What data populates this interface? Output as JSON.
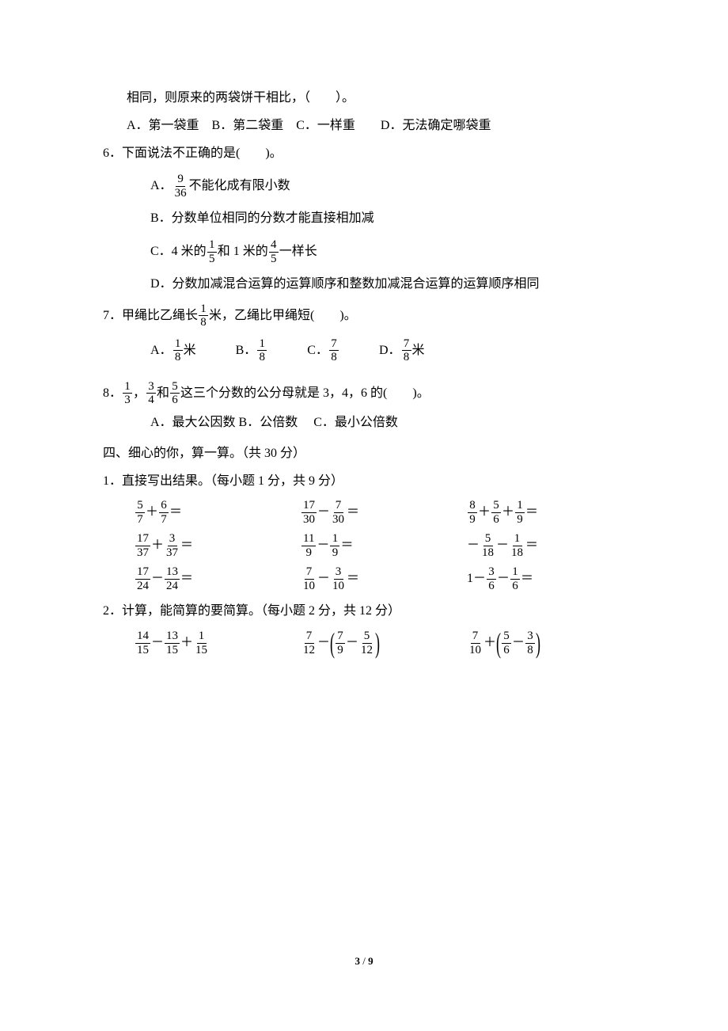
{
  "q5_cont": "相同，则原来的两袋饼干相比，（　　）。",
  "q5_opts": "A．第一袋重　B．第二袋重　C．一样重　　D．无法确定哪袋重",
  "q6": {
    "stem": "6．下面说法不正确的是(　　)。",
    "a_pre": "A．",
    "a_frac_n": "9",
    "a_frac_d": "36",
    "a_post": "不能化成有限小数",
    "b": "B．分数单位相同的分数才能直接相加减",
    "c_pre": "C．4 米的",
    "c_f1n": "1",
    "c_f1d": "5",
    "c_mid": "和 1 米的",
    "c_f2n": "4",
    "c_f2d": "5",
    "c_post": "一样长",
    "d": "D．分数加减混合运算的运算顺序和整数加减混合运算的运算顺序相同"
  },
  "q7": {
    "pre": "7．甲绳比乙绳长",
    "fn": "1",
    "fd": "8",
    "post": "米，乙绳比甲绳短(　　)。",
    "opts": [
      {
        "l": "A．",
        "n": "1",
        "d": "8",
        "suf": "米"
      },
      {
        "l": "B．",
        "n": "1",
        "d": "8",
        "suf": ""
      },
      {
        "l": "C．",
        "n": "7",
        "d": "8",
        "suf": ""
      },
      {
        "l": "D．",
        "n": "7",
        "d": "8",
        "suf": "米"
      }
    ]
  },
  "q8": {
    "pre": "8．",
    "f1n": "1",
    "f1d": "3",
    "sep1": "，",
    "f2n": "3",
    "f2d": "4",
    "sep2": "和",
    "f3n": "5",
    "f3d": "6",
    "post": "这三个分数的公分母就是 3，4，6 的(　　)。",
    "opts": "A．最大公因数 B．公倍数 　C．最小公倍数"
  },
  "sec4": "四、细心的你，算一算。（共 30 分）",
  "sec4_1": "1．直接写出结果。（每小题 1 分，共 9 分）",
  "calc1": [
    [
      {
        "t": "f",
        "n": "5",
        "d": "7"
      },
      {
        "t": "+",
        "v": "＋"
      },
      {
        "t": "f",
        "n": "6",
        "d": "7"
      },
      {
        "t": "=",
        "v": "＝"
      }
    ],
    [
      {
        "t": "f",
        "n": "17",
        "d": "30"
      },
      {
        "t": "-",
        "v": "－"
      },
      {
        "t": "f",
        "n": "7",
        "d": "30"
      },
      {
        "t": "=",
        "v": "＝"
      }
    ],
    [
      {
        "t": "f",
        "n": "8",
        "d": "9"
      },
      {
        "t": "+",
        "v": "＋"
      },
      {
        "t": "f",
        "n": "5",
        "d": "6"
      },
      {
        "t": "+",
        "v": "＋"
      },
      {
        "t": "f",
        "n": "1",
        "d": "9"
      },
      {
        "t": "=",
        "v": "＝"
      }
    ]
  ],
  "calc2": [
    [
      {
        "t": "f",
        "n": "17",
        "d": "37"
      },
      {
        "t": "+",
        "v": "＋"
      },
      {
        "t": "f",
        "n": "3",
        "d": "37"
      },
      {
        "t": "=",
        "v": "＝"
      }
    ],
    [
      {
        "t": "f",
        "n": "11",
        "d": "9"
      },
      {
        "t": "-",
        "v": "－"
      },
      {
        "t": "f",
        "n": "1",
        "d": "9"
      },
      {
        "t": "=",
        "v": "＝"
      }
    ],
    [
      {
        "t": "txt",
        "v": "－"
      },
      {
        "t": "f",
        "n": "5",
        "d": "18"
      },
      {
        "t": "-",
        "v": "－"
      },
      {
        "t": "f",
        "n": "1",
        "d": "18"
      },
      {
        "t": "=",
        "v": "＝"
      }
    ]
  ],
  "calc3": [
    [
      {
        "t": "f",
        "n": "17",
        "d": "24"
      },
      {
        "t": "-",
        "v": "－"
      },
      {
        "t": "f",
        "n": "13",
        "d": "24"
      },
      {
        "t": "=",
        "v": "＝"
      }
    ],
    [
      {
        "t": "f",
        "n": "7",
        "d": "10"
      },
      {
        "t": "-",
        "v": "－"
      },
      {
        "t": "f",
        "n": "3",
        "d": "10"
      },
      {
        "t": "=",
        "v": "＝"
      }
    ],
    [
      {
        "t": "txt",
        "v": "1－"
      },
      {
        "t": "f",
        "n": "3",
        "d": "6"
      },
      {
        "t": "-",
        "v": "－"
      },
      {
        "t": "f",
        "n": "1",
        "d": "6"
      },
      {
        "t": "=",
        "v": "＝"
      }
    ]
  ],
  "sec4_2": "2．计算，能简算的要简算。（每小题 2 分，共 12 分）",
  "calc4": [
    [
      {
        "t": "f",
        "n": "14",
        "d": "15"
      },
      {
        "t": "-",
        "v": "－"
      },
      {
        "t": "f",
        "n": "13",
        "d": "15"
      },
      {
        "t": "+",
        "v": "＋"
      },
      {
        "t": "f",
        "n": "1",
        "d": "15"
      }
    ],
    [
      {
        "t": "f",
        "n": "7",
        "d": "12"
      },
      {
        "t": "-",
        "v": "－"
      },
      {
        "t": "lp"
      },
      {
        "t": "f",
        "n": "7",
        "d": "9"
      },
      {
        "t": "-",
        "v": "－"
      },
      {
        "t": "f",
        "n": "5",
        "d": "12"
      },
      {
        "t": "rp"
      }
    ],
    [
      {
        "t": "f",
        "n": "7",
        "d": "10"
      },
      {
        "t": "+",
        "v": "＋"
      },
      {
        "t": "lp"
      },
      {
        "t": "f",
        "n": "5",
        "d": "6"
      },
      {
        "t": "-",
        "v": "－"
      },
      {
        "t": "f",
        "n": "3",
        "d": "8"
      },
      {
        "t": "rp"
      }
    ]
  ],
  "footer": {
    "cur": "3",
    "sep": " / ",
    "total": "9"
  }
}
